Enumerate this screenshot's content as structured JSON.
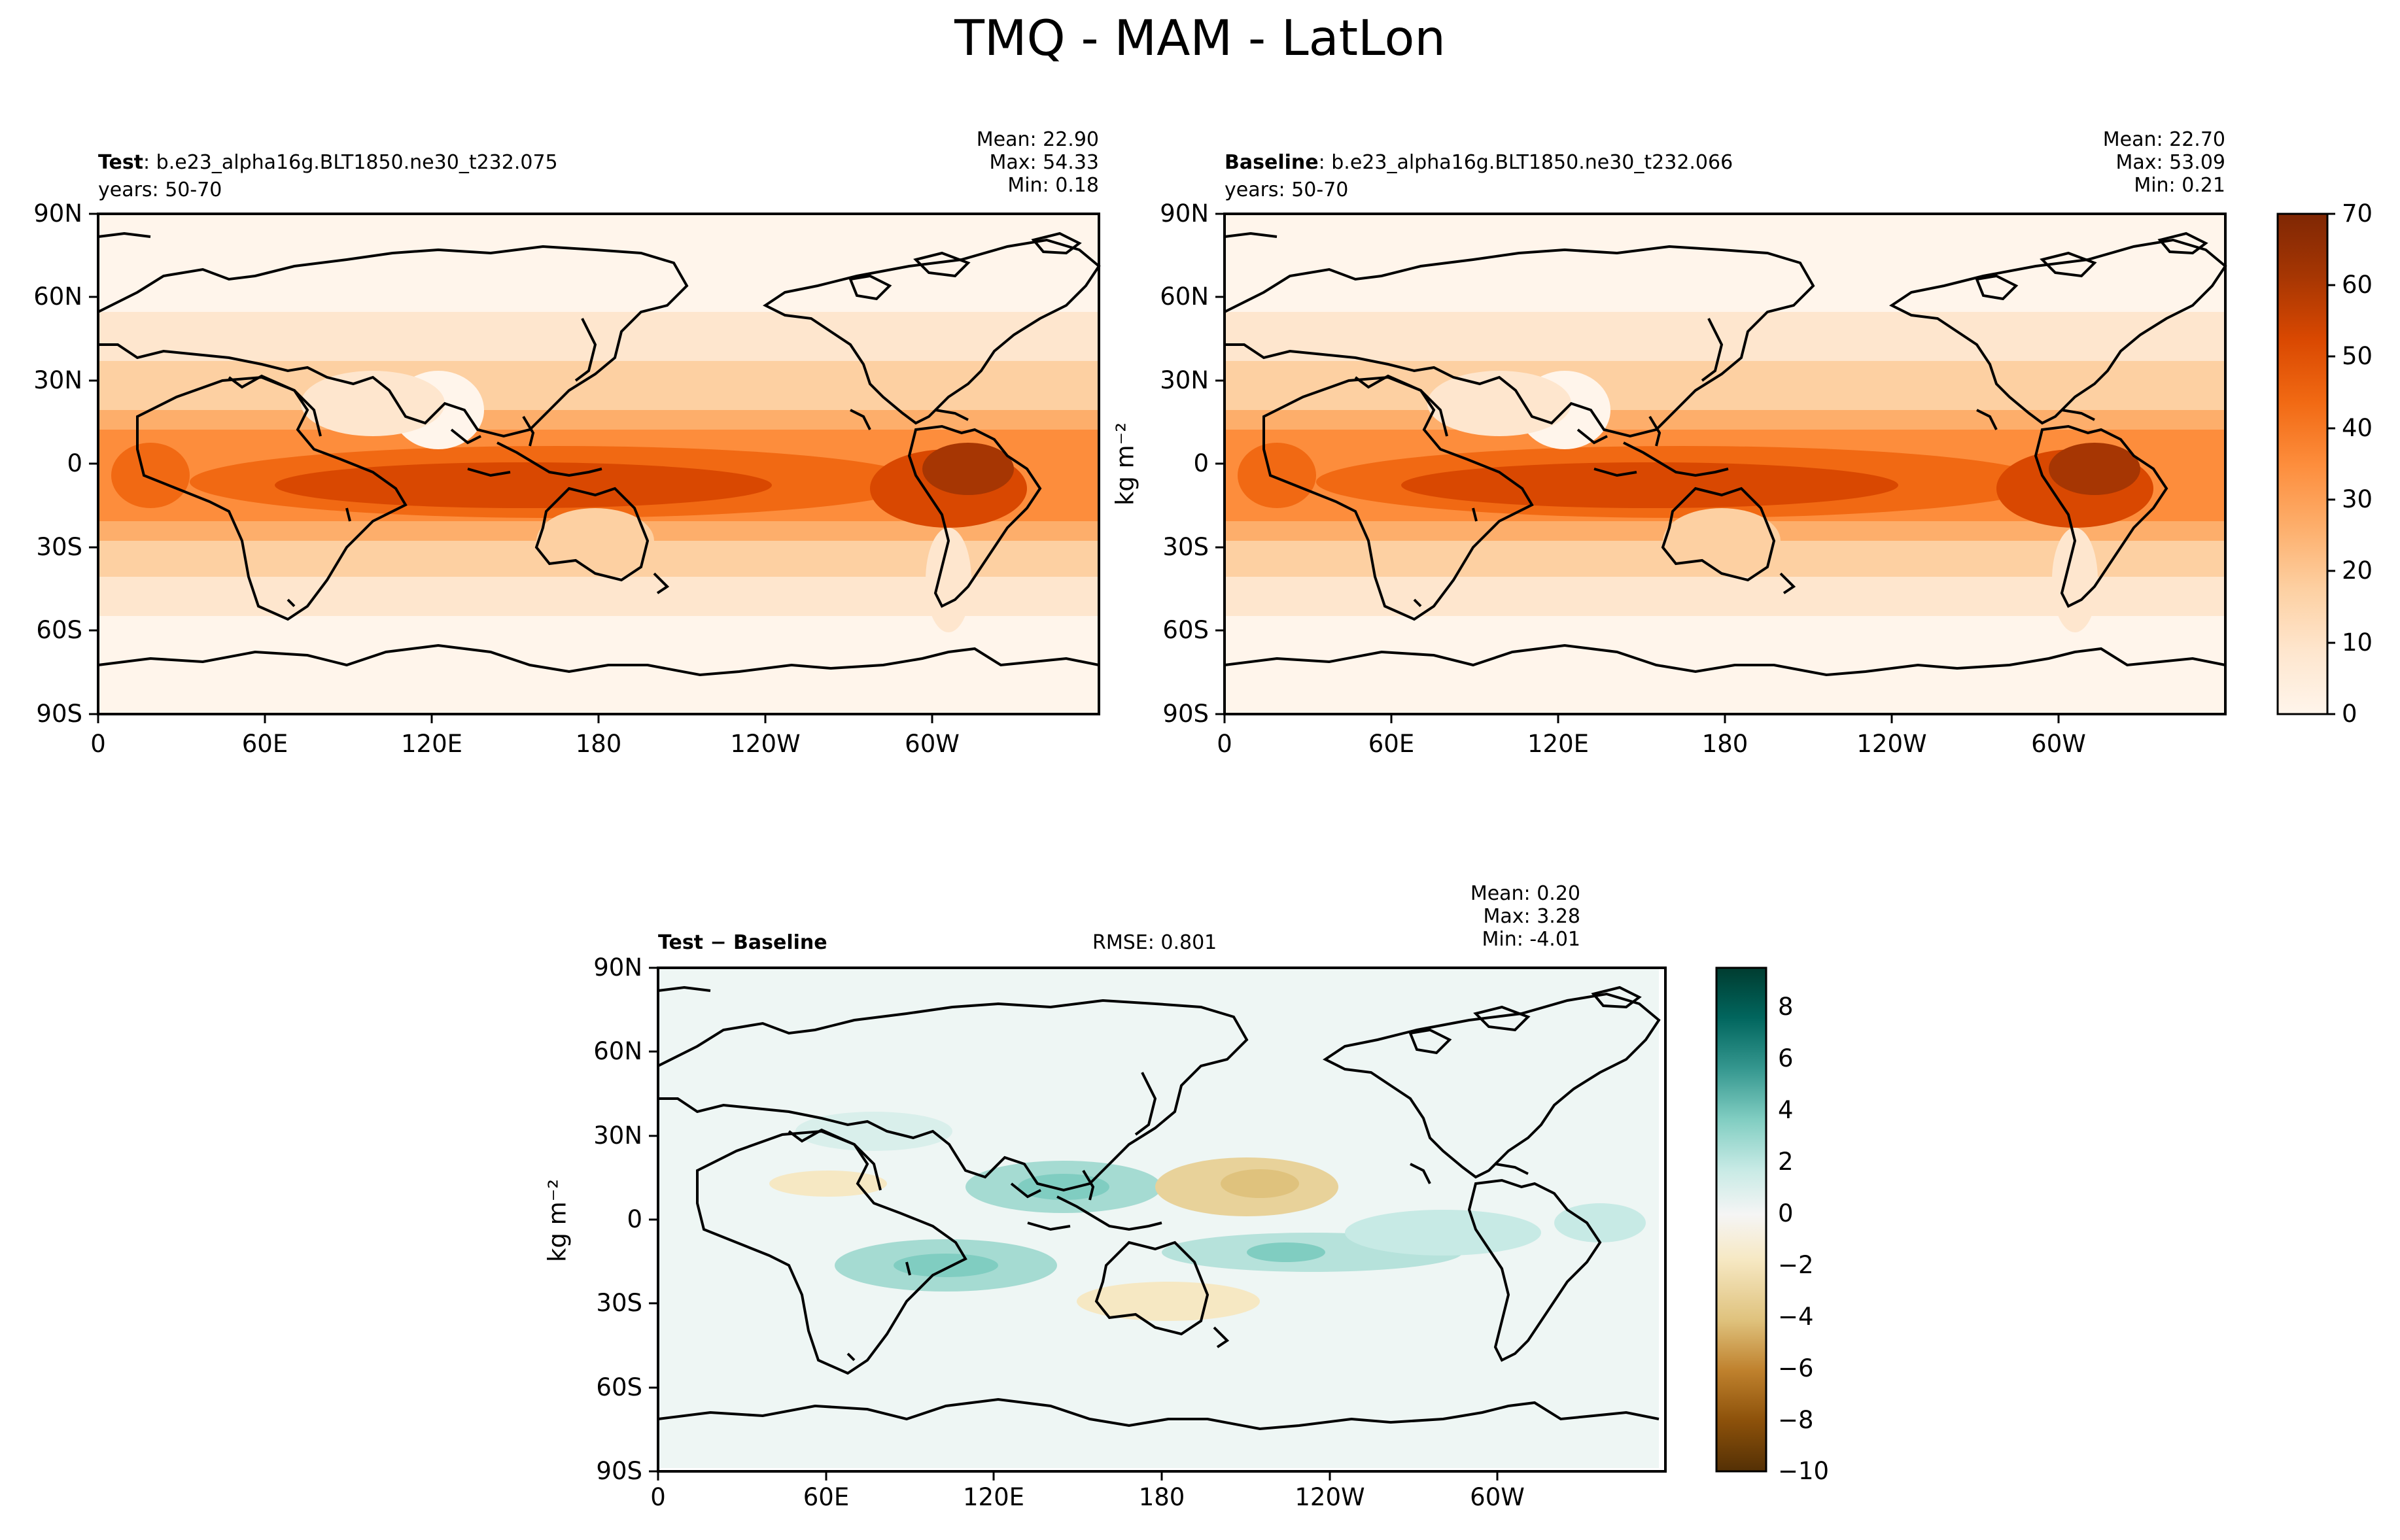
{
  "figure_title": "TMQ - MAM - LatLon",
  "panels": {
    "test": {
      "label": "Test",
      "case": ": b.e23_alpha16g.BLT1850.ne30_t232.075",
      "years": "years: 50-70",
      "mean": "Mean: 22.90",
      "max": "Max: 54.33",
      "min": "Min:  0.18"
    },
    "baseline": {
      "label": "Baseline",
      "case": ": b.e23_alpha16g.BLT1850.ne30_t232.066",
      "years": "years: 50-70",
      "mean": "Mean: 22.70",
      "max": "Max: 53.09",
      "min": "Min:  0.21"
    },
    "diff": {
      "label": "Test − Baseline",
      "rmse": "RMSE: 0.801",
      "mean": "Mean:  0.20",
      "max": "Max:  3.28",
      "min": "Min: -4.01"
    }
  },
  "units": "kg m⁻²",
  "axes": {
    "lat_ticks": [
      "90N",
      "60N",
      "30N",
      "0",
      "30S",
      "60S",
      "90S"
    ],
    "lon_ticks": [
      "0",
      "60E",
      "120E",
      "180",
      "120W",
      "60W"
    ]
  },
  "colorbars": {
    "main": {
      "ticks": [
        "70",
        "60",
        "50",
        "40",
        "30",
        "20",
        "10",
        "0"
      ],
      "range": [
        0,
        70
      ],
      "colors": [
        "#fff5eb",
        "#fee6ce",
        "#fdd0a2",
        "#fdae6b",
        "#fd8d3c",
        "#f16913",
        "#d94801",
        "#a63603",
        "#7f2704"
      ]
    },
    "diff": {
      "ticks": [
        "8",
        "6",
        "4",
        "2",
        "0",
        "−2",
        "−4",
        "−6",
        "−8",
        "−10"
      ],
      "range": [
        -10,
        9.5
      ],
      "colors": [
        "#543005",
        "#8c510a",
        "#bf812d",
        "#dfc27d",
        "#f6e8c3",
        "#f5f5f5",
        "#c7eae5",
        "#80cdc1",
        "#35978f",
        "#01665e",
        "#003c30"
      ]
    }
  }
}
